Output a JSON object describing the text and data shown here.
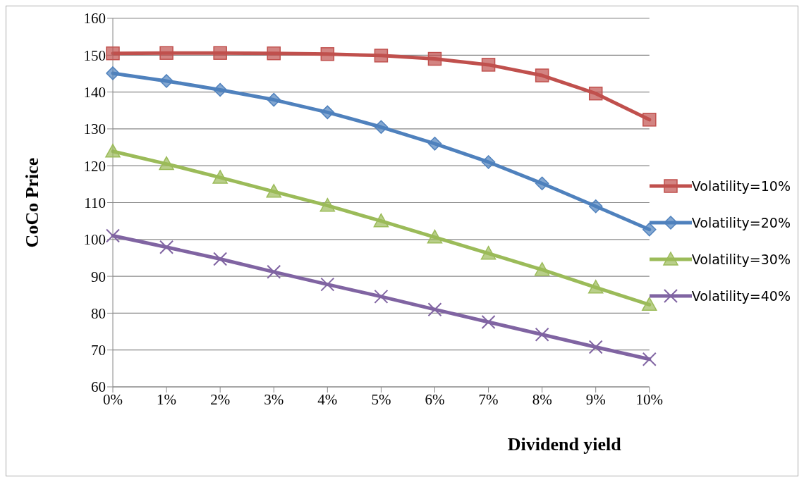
{
  "chart_data": {
    "type": "line",
    "xlabel": "Dividend yield",
    "ylabel": "CoCo  Price",
    "categories": [
      "0%",
      "1%",
      "2%",
      "3%",
      "4%",
      "5%",
      "6%",
      "7%",
      "8%",
      "9%",
      "10%"
    ],
    "series": [
      {
        "name": "Volatility=10%",
        "color": "#c0504d",
        "marker": "square",
        "values": [
          150.5,
          150.6,
          150.6,
          150.5,
          150.3,
          149.9,
          149,
          147.4,
          144.5,
          139.6,
          132.5
        ]
      },
      {
        "name": "Volatility=20%",
        "color": "#4f81bd",
        "marker": "diamond",
        "values": [
          145.1,
          143,
          140.6,
          137.9,
          134.5,
          130.5,
          126,
          121,
          115.2,
          109,
          102.7
        ]
      },
      {
        "name": "Volatility=30%",
        "color": "#9bbb59",
        "marker": "triangle",
        "values": [
          123.9,
          120.5,
          116.8,
          113,
          109.2,
          105,
          100.6,
          96.2,
          91.8,
          87,
          82.3
        ]
      },
      {
        "name": "Volatility=40%",
        "color": "#8064a2",
        "marker": "cross",
        "values": [
          101,
          97.9,
          94.7,
          91.2,
          87.8,
          84.5,
          81,
          77.6,
          74.2,
          70.8,
          67.5
        ]
      }
    ],
    "ylim": [
      60,
      160
    ],
    "yticks": [
      60,
      70,
      80,
      90,
      100,
      110,
      120,
      130,
      140,
      150,
      160
    ],
    "grid": "y",
    "legend": "right"
  }
}
